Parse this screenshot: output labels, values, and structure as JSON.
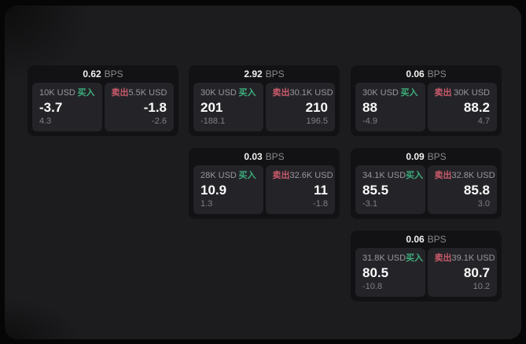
{
  "labels": {
    "buy": "买入",
    "sell": "卖出",
    "bps_unit": "BPS"
  },
  "colors": {
    "buy_green": "#3daf7d",
    "sell_red": "#ca5a6b",
    "window_bg": "#1c1c1e",
    "card_bg": "#121214",
    "panel_bg": "#242428"
  },
  "cards": [
    {
      "bps": "0.62",
      "buy": {
        "size": "10K USD",
        "price": "-3.7",
        "delta": "4.3"
      },
      "sell": {
        "size": "5.5K USD",
        "price": "-1.8",
        "delta": "-2.6"
      }
    },
    {
      "bps": "2.92",
      "buy": {
        "size": "30K USD",
        "price": "201",
        "delta": "-188.1"
      },
      "sell": {
        "size": "30.1K USD",
        "price": "210",
        "delta": "196.5"
      }
    },
    {
      "bps": "0.06",
      "buy": {
        "size": "30K USD",
        "price": "88",
        "delta": "-4.9"
      },
      "sell": {
        "size": "30K USD",
        "price": "88.2",
        "delta": "4.7"
      }
    },
    {
      "bps": "0.03",
      "buy": {
        "size": "28K USD",
        "price": "10.9",
        "delta": "1.3"
      },
      "sell": {
        "size": "32.6K USD",
        "price": "11",
        "delta": "-1.8"
      }
    },
    {
      "bps": "0.09",
      "buy": {
        "size": "34.1K USD",
        "price": "85.5",
        "delta": "-3.1"
      },
      "sell": {
        "size": "32.8K USD",
        "price": "85.8",
        "delta": "3.0"
      }
    },
    {
      "bps": "0.06",
      "buy": {
        "size": "31.8K USD",
        "price": "80.5",
        "delta": "-10.8"
      },
      "sell": {
        "size": "39.1K USD",
        "price": "80.7",
        "delta": "10.2"
      }
    }
  ]
}
